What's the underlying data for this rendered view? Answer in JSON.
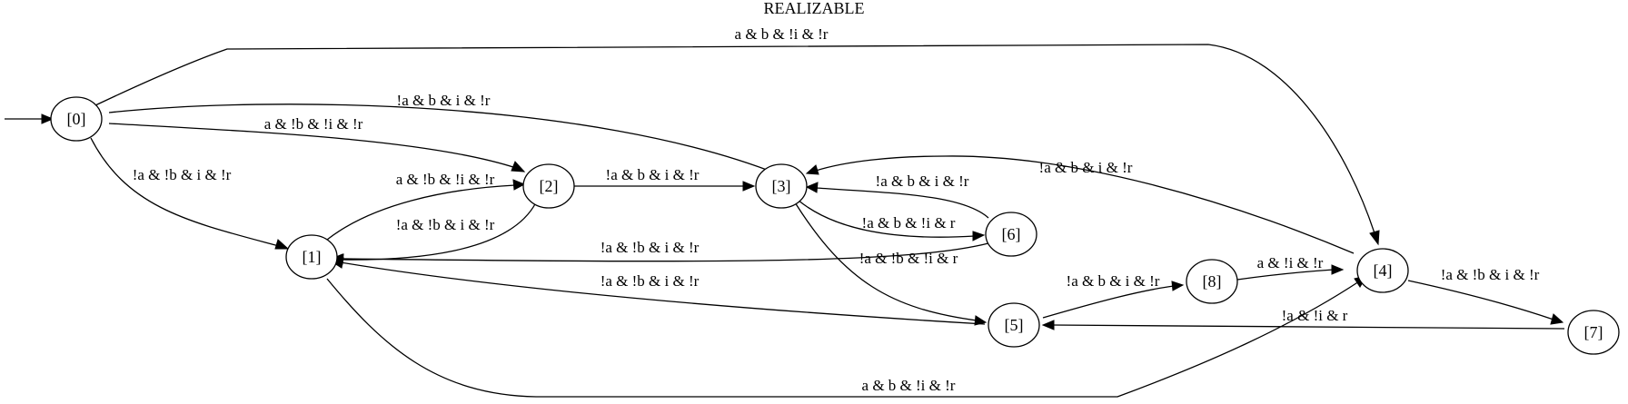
{
  "title": "REALIZABLE",
  "nodes": {
    "n0": "[0]",
    "n1": "[1]",
    "n2": "[2]",
    "n3": "[3]",
    "n4": "[4]",
    "n5": "[5]",
    "n6": "[6]",
    "n7": "[7]",
    "n8": "[8]"
  },
  "edges": {
    "e0_4": "a & b & !i & !r",
    "e0_3": "!a & b & i & !r",
    "e0_2": "a & !b & !i & !r",
    "e0_1": "!a & !b & i & !r",
    "e1_2": "a & !b & !i & !r",
    "e2_1": "!a & !b & i & !r",
    "e2_3": "!a & b & i & !r",
    "e6_3": "!a & b & i & !r",
    "e3_6": "!a & b & !i & r",
    "e3_5": "!a & !b & !i & r",
    "e4_3": "!a & b & i & !r",
    "e6_1": "!a & !b & i & !r",
    "e5_1": "!a & !b & i & !r",
    "e5_8": "!a & b & i & !r",
    "e8_4": "a & !i & !r",
    "e4_7": "!a & !b & i & !r",
    "e7_5": "!a & !i & r",
    "e1_4": "a & b & !i & !r"
  }
}
